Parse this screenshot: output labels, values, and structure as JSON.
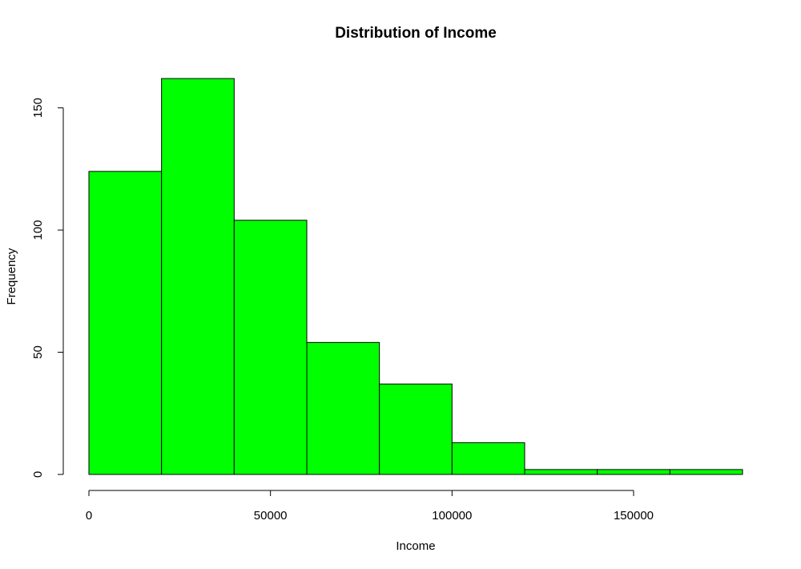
{
  "chart_data": {
    "type": "bar",
    "title": "Distribution of Income",
    "xlabel": "Income",
    "ylabel": "Frequency",
    "bar_color": "#00ff00",
    "bins": [
      {
        "from": 0,
        "to": 20000,
        "count": 124
      },
      {
        "from": 20000,
        "to": 40000,
        "count": 162
      },
      {
        "from": 40000,
        "to": 60000,
        "count": 104
      },
      {
        "from": 60000,
        "to": 80000,
        "count": 54
      },
      {
        "from": 80000,
        "to": 100000,
        "count": 37
      },
      {
        "from": 100000,
        "to": 120000,
        "count": 13
      },
      {
        "from": 120000,
        "to": 140000,
        "count": 2
      },
      {
        "from": 140000,
        "to": 160000,
        "count": 2
      },
      {
        "from": 160000,
        "to": 180000,
        "count": 2
      }
    ],
    "xlim": [
      0,
      180000
    ],
    "ylim": [
      0,
      162
    ],
    "x_ticks": [
      0,
      50000,
      100000,
      150000
    ],
    "x_tick_labels": [
      "0",
      "50000",
      "100000",
      "150000"
    ],
    "y_ticks": [
      0,
      50,
      100,
      150
    ],
    "y_tick_labels": [
      "0",
      "50",
      "100",
      "150"
    ],
    "grid": false,
    "legend": "none"
  }
}
